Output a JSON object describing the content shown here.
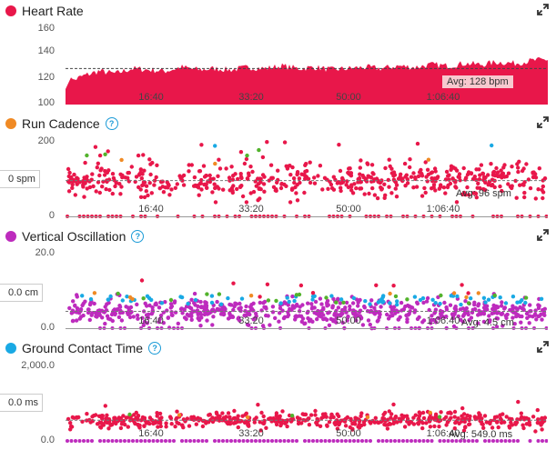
{
  "x_ticks": [
    "16:40",
    "33:20",
    "50:00",
    "1:06:40"
  ],
  "colors": {
    "red": "#e8174a",
    "orange": "#f08a24",
    "green": "#52b32c",
    "blue": "#19a9e4",
    "purple": "#bd2bbd",
    "help": "#1b9bd7"
  },
  "panels": [
    {
      "title": "Heart Rate",
      "dot_color": "#e8174a",
      "help": false,
      "y_ticks": [
        "160",
        "140",
        "120",
        "100"
      ],
      "avg_label": "Avg: 128 bpm",
      "cursor_label": ""
    },
    {
      "title": "Run Cadence",
      "dot_color": "#f08a24",
      "help": true,
      "y_ticks": [
        "200",
        "0"
      ],
      "avg_label": "Avg: 96 spm",
      "cursor_label": "0 spm"
    },
    {
      "title": "Vertical Oscillation",
      "dot_color": "#bd2bbd",
      "help": true,
      "y_ticks": [
        "20.0",
        "0.0"
      ],
      "avg_label": "Avg: 4.5 cm",
      "cursor_label": "0.0 cm"
    },
    {
      "title": "Ground Contact Time",
      "dot_color": "#19a9e4",
      "help": true,
      "y_ticks": [
        "2,000.0",
        "0.0"
      ],
      "avg_label": "Avg: 549.0 ms",
      "cursor_label": "0.0 ms"
    }
  ],
  "chart_data": [
    {
      "type": "area",
      "series": [
        {
          "name": "Heart Rate",
          "values": [
            116,
            122,
            126,
            124,
            128,
            127,
            126,
            129,
            127,
            128,
            127,
            129,
            128,
            130,
            128,
            129,
            127,
            128,
            129,
            128,
            130,
            129,
            131,
            130,
            132,
            131,
            133,
            132,
            134,
            135
          ]
        }
      ],
      "ylim": [
        100,
        160
      ],
      "avg": 128
    },
    {
      "type": "scatter",
      "ylim": [
        0,
        200
      ],
      "avg": 96
    },
    {
      "type": "scatter",
      "ylim": [
        0,
        20
      ],
      "avg": 4.5
    },
    {
      "type": "scatter",
      "ylim": [
        0,
        2000
      ],
      "avg": 549
    }
  ]
}
